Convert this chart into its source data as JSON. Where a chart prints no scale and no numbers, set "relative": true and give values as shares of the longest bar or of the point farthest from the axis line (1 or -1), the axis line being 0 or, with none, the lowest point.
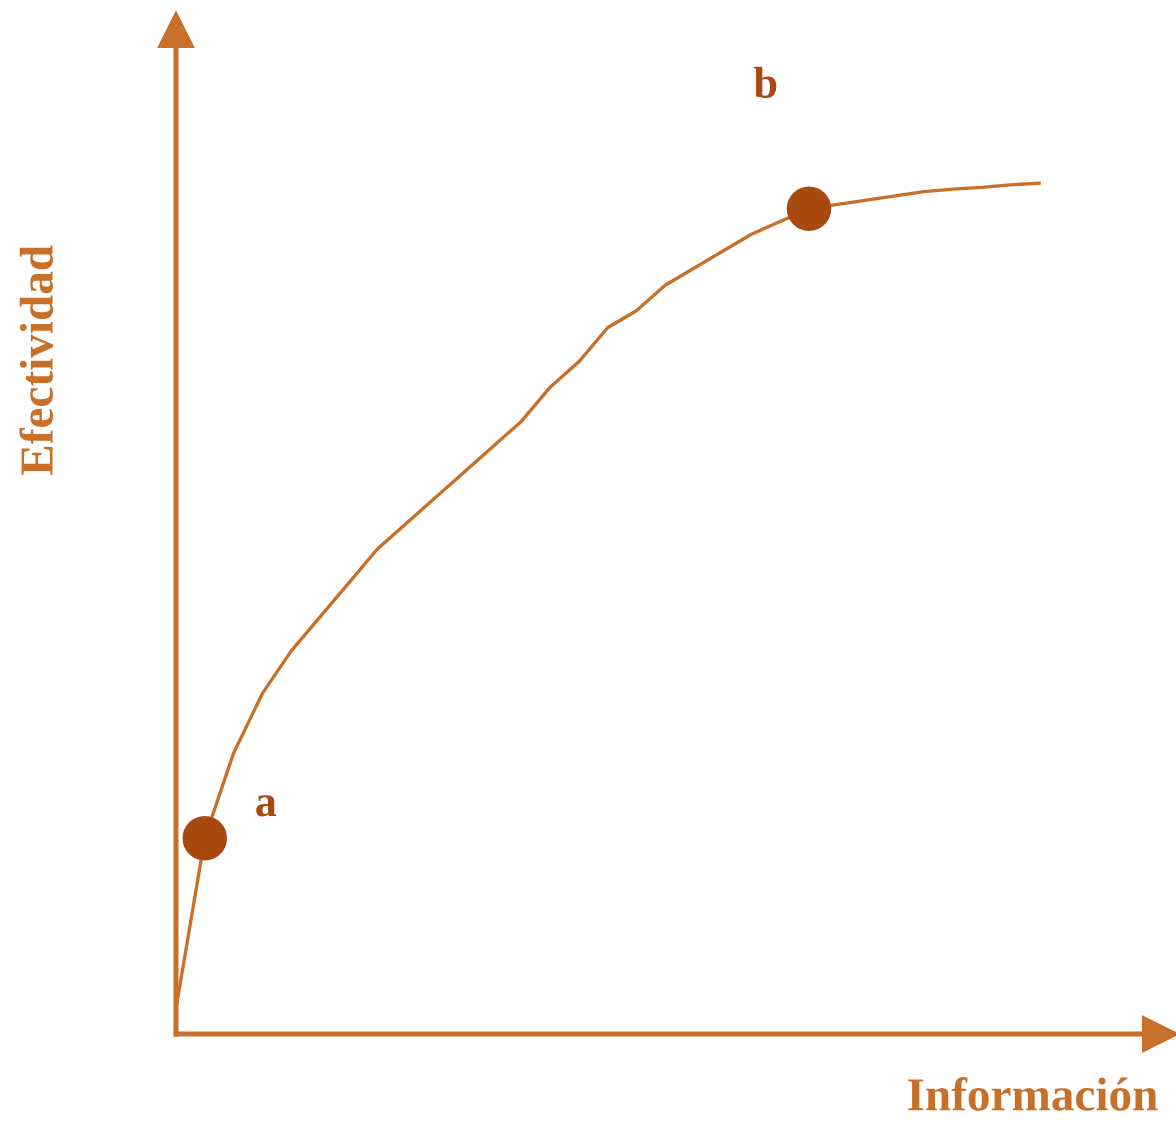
{
  "chart_data": {
    "type": "line",
    "relative": true,
    "xlabel": "Información",
    "ylabel": "Efectividad",
    "tick_labels": false,
    "grid": false,
    "categories": [
      null,
      null,
      null,
      null,
      null,
      null,
      null,
      null,
      null,
      null,
      null,
      null,
      null,
      null,
      null,
      null,
      null,
      null,
      null,
      null,
      null,
      null,
      null,
      null,
      null,
      null,
      null,
      null,
      null,
      null,
      null
    ],
    "series": [
      {
        "color": "#c8702a",
        "marker": "none",
        "line_style": "solid",
        "values": [
          0.03,
          0.23,
          0.33,
          0.4,
          0.45,
          0.49,
          0.53,
          0.57,
          0.6,
          0.63,
          0.66,
          0.69,
          0.72,
          0.76,
          0.79,
          0.83,
          0.85,
          0.88,
          0.9,
          0.92,
          0.94,
          0.955,
          0.97,
          0.975,
          0.98,
          0.985,
          0.99,
          0.993,
          0.995,
          0.998,
          1
        ]
      },
      {
        "type": "line",
        "name": "a",
        "color": "#a84a10",
        "marker": "circle",
        "values": [
          null,
          0.23,
          null,
          null,
          null,
          null,
          null,
          null,
          null,
          null,
          null,
          null,
          null,
          null,
          null,
          null,
          null,
          null,
          null,
          null,
          null,
          null,
          null,
          null,
          null,
          null,
          null,
          null,
          null,
          null,
          null
        ]
      },
      {
        "type": "line",
        "name": "b",
        "color": "#a84a10",
        "marker": "circle",
        "values": [
          null,
          null,
          null,
          null,
          null,
          null,
          null,
          null,
          null,
          null,
          null,
          null,
          null,
          null,
          null,
          null,
          null,
          null,
          null,
          null,
          null,
          null,
          0.97,
          null,
          null,
          null,
          null,
          null,
          null,
          null,
          null
        ]
      }
    ]
  }
}
